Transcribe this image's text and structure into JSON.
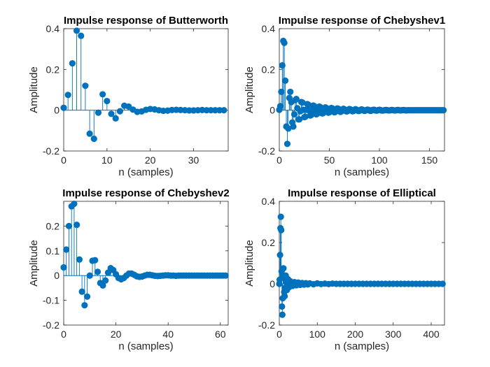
{
  "colors": {
    "series": "#0072BD",
    "axis": "#262626",
    "background": "#ffffff"
  },
  "chart_data": [
    {
      "type": "stem",
      "title": "Impulse response of Butterworth",
      "xlabel": "n (samples)",
      "ylabel": "Amplitude",
      "xlim": [
        0,
        38
      ],
      "ylim": [
        -0.2,
        0.4
      ],
      "xticks": [
        "0",
        "10",
        "20",
        "30"
      ],
      "yticks": [
        "-0.2",
        "0",
        "0.2",
        "0.4"
      ],
      "grid": false,
      "x": [
        0,
        1,
        2,
        3,
        4,
        5,
        6,
        7,
        8,
        9,
        10,
        11,
        12,
        13,
        14,
        15,
        16,
        17,
        18,
        19,
        20,
        21,
        22,
        23,
        24,
        25,
        26,
        27,
        28,
        29,
        30,
        31,
        32,
        33,
        34,
        35,
        36,
        37
      ],
      "values": [
        0.012,
        0.075,
        0.23,
        0.39,
        0.365,
        0.12,
        -0.115,
        -0.14,
        -0.012,
        0.078,
        0.045,
        -0.018,
        -0.04,
        -0.005,
        0.022,
        0.018,
        0.003,
        -0.008,
        -0.006,
        0.002,
        0.006,
        0.004,
        0.0,
        -0.003,
        -0.002,
        0.001,
        0.002,
        0.001,
        0.0,
        -0.001,
        -0.001,
        0.0,
        0.001,
        0.0,
        0.0,
        0.0,
        0.0,
        0.0
      ]
    },
    {
      "type": "stem",
      "title": "Impulse response of Chebyshev1",
      "xlabel": "n (samples)",
      "ylabel": "Amplitude",
      "xlim": [
        0,
        165
      ],
      "ylim": [
        -0.2,
        0.4
      ],
      "xticks": [
        "0",
        "50",
        "100",
        "150"
      ],
      "yticks": [
        "-0.2",
        "0",
        "0.2",
        "0.4"
      ],
      "grid": false,
      "x": [
        0,
        1,
        2,
        3,
        4,
        5,
        6,
        7,
        8,
        9,
        10,
        11,
        12,
        13,
        14,
        15,
        16,
        17,
        18,
        19,
        20,
        21,
        22,
        23,
        24,
        25,
        26,
        27,
        28,
        29,
        30,
        31,
        32,
        33,
        34,
        35,
        36,
        37,
        38,
        39,
        40,
        41,
        42,
        43,
        44,
        45,
        46,
        47,
        48,
        49,
        50,
        51,
        52,
        53,
        54,
        55,
        56,
        57,
        58,
        59,
        60,
        61,
        62,
        63,
        64,
        65,
        66,
        67,
        68,
        69,
        70,
        71,
        72,
        73,
        74,
        75,
        76,
        77,
        78,
        79,
        80,
        81,
        82,
        83,
        84,
        85,
        86,
        87,
        88,
        89,
        90,
        91,
        92,
        93,
        94,
        95,
        96,
        97,
        98,
        99,
        100,
        101,
        102,
        103,
        104,
        105,
        106,
        107,
        108,
        109,
        110,
        111,
        112,
        113,
        114,
        115,
        116,
        117,
        118,
        119,
        120,
        121,
        122,
        123,
        124,
        125,
        126,
        127,
        128,
        129,
        130,
        131,
        132,
        133,
        134,
        135,
        136,
        137,
        138,
        139,
        140,
        141,
        142,
        143,
        144,
        145,
        146,
        147,
        148,
        149,
        150,
        151,
        152,
        153,
        154,
        155,
        156,
        157,
        158,
        159,
        160,
        161,
        162,
        163,
        164
      ],
      "values": [
        0.002,
        0.02,
        0.09,
        0.22,
        0.34,
        0.33,
        0.145,
        -0.08,
        -0.165,
        -0.09,
        0.06,
        0.09,
        0.04,
        -0.06,
        -0.08,
        -0.02,
        0.05,
        0.055,
        0.01,
        -0.045,
        -0.045,
        -0.005,
        0.04,
        0.038,
        0.002,
        -0.034,
        -0.032,
        0.002,
        0.03,
        0.027,
        -0.003,
        -0.026,
        -0.023,
        0.003,
        0.023,
        0.02,
        -0.003,
        -0.02,
        -0.017,
        0.003,
        0.018,
        0.015,
        -0.003,
        -0.016,
        -0.013,
        0.003,
        0.014,
        0.011,
        -0.003,
        -0.012,
        -0.01,
        0.002,
        0.011,
        0.009,
        -0.002,
        -0.01,
        -0.008,
        0.002,
        0.009,
        0.007,
        -0.002,
        -0.008,
        -0.006,
        0.002,
        0.007,
        0.005,
        -0.002,
        -0.006,
        -0.005,
        0.001,
        0.006,
        0.004,
        -0.001,
        -0.005,
        -0.004,
        0.001,
        0.005,
        0.003,
        -0.001,
        -0.004,
        -0.003,
        0.001,
        0.004,
        0.003,
        -0.001,
        -0.003,
        -0.002,
        0.001,
        0.003,
        0.002,
        -0.001,
        -0.003,
        -0.002,
        0.001,
        0.002,
        0.002,
        -0.001,
        -0.002,
        -0.001,
        0.001,
        0.002,
        0.001,
        -0.001,
        -0.002,
        -0.001,
        0.0,
        0.001,
        0.001,
        0.0,
        -0.001,
        -0.001,
        0.0,
        0.001,
        0.001,
        0.0,
        -0.001,
        -0.001,
        0.0,
        0.001,
        0.001,
        0.0,
        -0.001,
        0.0,
        0.0,
        0.001,
        0.0,
        0.0,
        -0.001,
        0.0,
        0.0,
        0.0,
        0.0,
        0.0,
        0.0,
        0.0,
        0.0,
        0.0,
        0.0,
        0.0,
        0.0,
        0.0,
        0.0,
        0.0,
        0.0,
        0.0,
        0.0,
        0.0,
        0.0,
        0.0,
        0.0,
        0.0,
        0.0,
        0.0,
        0.0,
        0.0,
        0.0,
        0.0,
        0.0,
        0.0,
        0.0,
        0.0,
        0.0,
        0.0,
        0.0,
        0.0
      ]
    },
    {
      "type": "stem",
      "title": "Impulse response of Chebyshev2",
      "xlabel": "n (samples)",
      "ylabel": "Amplitude",
      "xlim": [
        0,
        63
      ],
      "ylim": [
        -0.2,
        0.3
      ],
      "xticks": [
        "0",
        "20",
        "40",
        "60"
      ],
      "yticks": [
        "-0.2",
        "-0.1",
        "0",
        "0.1",
        "0.2"
      ],
      "grid": false,
      "x": [
        0,
        1,
        2,
        3,
        4,
        5,
        6,
        7,
        8,
        9,
        10,
        11,
        12,
        13,
        14,
        15,
        16,
        17,
        18,
        19,
        20,
        21,
        22,
        23,
        24,
        25,
        26,
        27,
        28,
        29,
        30,
        31,
        32,
        33,
        34,
        35,
        36,
        37,
        38,
        39,
        40,
        41,
        42,
        43,
        44,
        45,
        46,
        47,
        48,
        49,
        50,
        51,
        52,
        53,
        54,
        55,
        56,
        57,
        58,
        59,
        60,
        61,
        62
      ],
      "values": [
        0.033,
        0.105,
        0.2,
        0.28,
        0.29,
        0.205,
        0.065,
        -0.065,
        -0.12,
        -0.085,
        0.0,
        0.06,
        0.062,
        0.015,
        -0.03,
        -0.04,
        -0.02,
        0.012,
        0.03,
        0.022,
        0.005,
        -0.01,
        -0.015,
        -0.01,
        0.0,
        0.008,
        0.008,
        0.003,
        -0.003,
        -0.005,
        -0.004,
        0.0,
        0.003,
        0.003,
        0.001,
        -0.001,
        -0.002,
        -0.001,
        0.0,
        0.001,
        0.001,
        0.0,
        0.0,
        -0.001,
        0.0,
        0.0,
        0.0,
        0.0,
        0.0,
        0.0,
        0.0,
        0.0,
        0.0,
        0.0,
        0.0,
        0.0,
        0.0,
        0.0,
        0.0,
        0.0,
        0.0,
        0.0,
        0.0
      ]
    },
    {
      "type": "stem",
      "title": "Impulse response of Elliptical",
      "xlabel": "n (samples)",
      "ylabel": "Amplitude",
      "xlim": [
        0,
        435
      ],
      "ylim": [
        -0.2,
        0.4
      ],
      "xticks": [
        "0",
        "100",
        "200",
        "300",
        "400"
      ],
      "yticks": [
        "-0.2",
        "0",
        "0.2",
        "0.4"
      ],
      "grid": false,
      "x": [
        0,
        1,
        2,
        3,
        4,
        5,
        6,
        7,
        8,
        9,
        10,
        11,
        12,
        13,
        14,
        15,
        16,
        17,
        18,
        19,
        20,
        21,
        22,
        23,
        24,
        25,
        26,
        27,
        28,
        29,
        30,
        35,
        40,
        45,
        50,
        55,
        60,
        65,
        70,
        75,
        80,
        90,
        100,
        110,
        120,
        130,
        140,
        150,
        160,
        170,
        180,
        190,
        200,
        210,
        220,
        230,
        240,
        250,
        260,
        270,
        280,
        290,
        300,
        310,
        320,
        330,
        340,
        350,
        360,
        370,
        380,
        390,
        400,
        410,
        420,
        430
      ],
      "values": [
        0.0,
        0.02,
        0.14,
        0.27,
        0.325,
        0.26,
        0.06,
        -0.11,
        -0.15,
        -0.07,
        0.04,
        0.075,
        0.035,
        -0.04,
        -0.06,
        -0.02,
        0.03,
        0.04,
        0.01,
        -0.025,
        -0.03,
        -0.005,
        0.02,
        0.022,
        0.0,
        -0.016,
        -0.016,
        0.002,
        0.013,
        0.012,
        -0.002,
        -0.01,
        0.008,
        -0.007,
        0.006,
        -0.005,
        0.004,
        -0.004,
        0.003,
        -0.003,
        0.002,
        -0.002,
        0.002,
        -0.001,
        0.001,
        -0.001,
        0.001,
        0.0,
        0.0,
        0.0,
        0.0,
        0.0,
        0.0,
        0.0,
        0.0,
        0.0,
        0.0,
        0.0,
        0.0,
        0.0,
        0.0,
        0.0,
        0.0,
        0.0,
        0.0,
        0.0,
        0.0,
        0.0,
        0.0,
        0.0,
        0.0,
        0.0,
        0.0,
        0.0,
        0.0,
        0.0
      ]
    }
  ]
}
